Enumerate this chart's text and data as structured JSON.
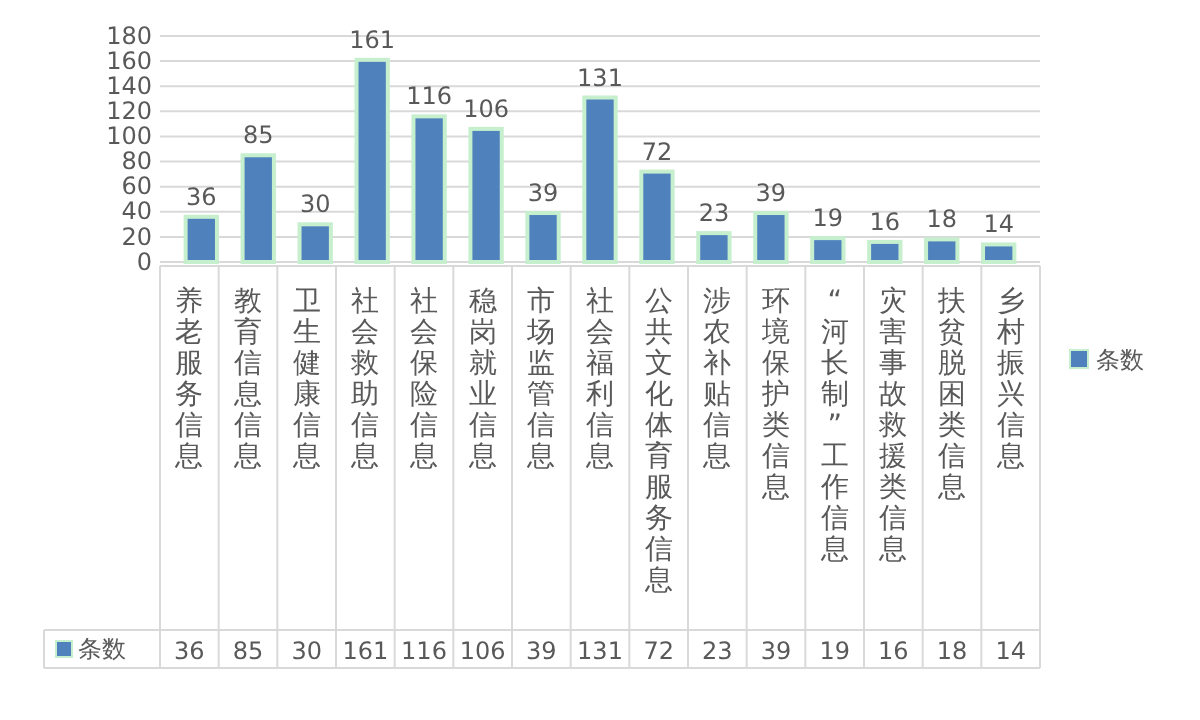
{
  "chart_data": {
    "type": "bar",
    "categories": [
      "养老服务信息",
      "教育信息信息",
      "卫生健康信息",
      "社会救助信息",
      "社会保险信息",
      "稳岗就业信息",
      "市场监管信息",
      "社会福利信息",
      "公共文化体育服务信息",
      "涉农补贴信息",
      "环境保护类信息",
      "“河长制”工作信息",
      "灾害事故救援类信息",
      "扶贫脱困类信息",
      "乡村振兴信息"
    ],
    "series": [
      {
        "name": "条数",
        "color": "#4f81bd",
        "values": [
          36,
          85,
          30,
          161,
          116,
          106,
          39,
          131,
          72,
          23,
          39,
          19,
          16,
          18,
          14
        ],
        "value_labels": [
          "36",
          "85",
          "30",
          "161",
          "116",
          "106",
          "39",
          "131",
          "72",
          "23",
          "39",
          "19",
          "16",
          "18",
          "14"
        ]
      }
    ],
    "ylim": [
      0,
      180
    ],
    "yticks": [
      0,
      20,
      40,
      60,
      80,
      100,
      120,
      140,
      160,
      180
    ],
    "annotations": [
      "36",
      "85",
      "30",
      "161",
      "116",
      "106",
      "39",
      "131",
      "72",
      "23",
      "39",
      "19",
      "16",
      "18",
      "14"
    ],
    "grid": "y",
    "legend": "right"
  }
}
